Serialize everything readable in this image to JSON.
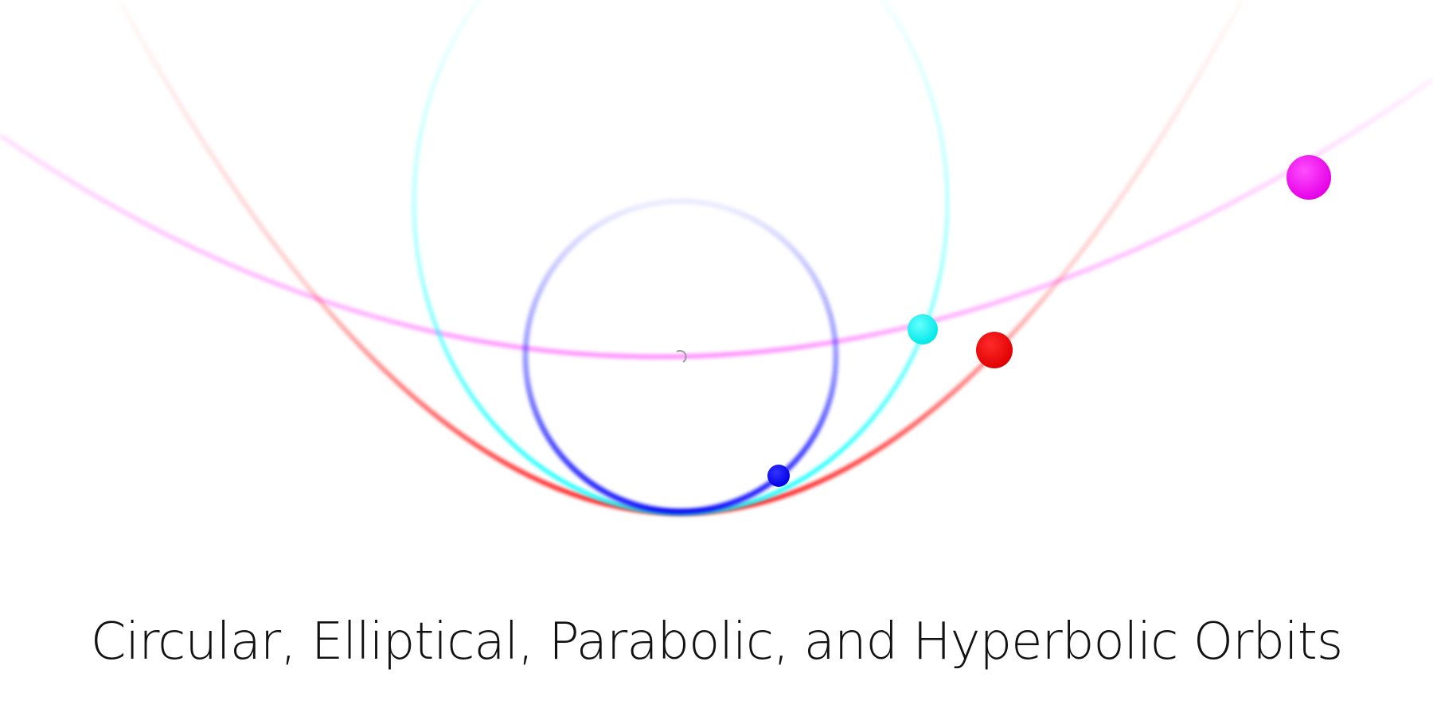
{
  "caption": "Circular, Elliptical, Parabolic, and Hyperbolic Orbits",
  "orbits": [
    {
      "kind": "circular",
      "color": "#0000ff"
    },
    {
      "kind": "elliptical",
      "color": "#00ffff"
    },
    {
      "kind": "parabolic",
      "color": "#ff0000"
    },
    {
      "kind": "hyperbolic",
      "color": "#ff00ff"
    }
  ],
  "central_body": {
    "color": "#9a9a9a"
  }
}
